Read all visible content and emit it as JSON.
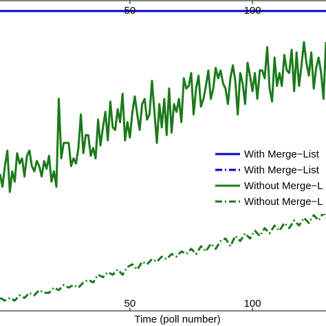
{
  "chart_data": {
    "type": "line",
    "xlabel": "Time (poll number)",
    "ylabel": "",
    "x_ticks": [
      50,
      100
    ],
    "x_axis_span_px_hint": "",
    "legend": {
      "placement": "right",
      "entries": [
        {
          "label": "With Merge−List",
          "color": "#0000cc",
          "style": "solid"
        },
        {
          "label": "With Merge−List",
          "color": "#0000cc",
          "style": "dashdot"
        },
        {
          "label": "Without Merge−L",
          "color": "#1a7a1a",
          "style": "solid"
        },
        {
          "label": "Without Merge−L",
          "color": "#1a7a1a",
          "style": "dashdot"
        }
      ]
    },
    "grid": false,
    "series": [
      {
        "name": "With Merge−List",
        "color": "#0000cc",
        "style": "solid",
        "x": [
          -3,
          130
        ],
        "y": [
          4,
          4
        ]
      },
      {
        "name": "Without Merge−L",
        "color": "#1a7a1a",
        "style": "solid",
        "x": [
          -3,
          -2,
          -1,
          0,
          1,
          2,
          3,
          4,
          5,
          6,
          7,
          8,
          9,
          10,
          11,
          12,
          13,
          14,
          15,
          16,
          17,
          18,
          19,
          20,
          21,
          22,
          23,
          24,
          25,
          26,
          27,
          28,
          29,
          30,
          31,
          32,
          33,
          34,
          35,
          36,
          37,
          38,
          39,
          40,
          41,
          42,
          43,
          44,
          45,
          46,
          47,
          48,
          49,
          50,
          51,
          52,
          53,
          54,
          55,
          56,
          57,
          58,
          59,
          60,
          61,
          62,
          63,
          64,
          65,
          66,
          67,
          68,
          69,
          70,
          71,
          72,
          73,
          74,
          75,
          76,
          77,
          78,
          79,
          80,
          81,
          82,
          83,
          84,
          85,
          86,
          87,
          88,
          89,
          90,
          91,
          92,
          93,
          94,
          95,
          96,
          97,
          98,
          99,
          100,
          101,
          102,
          103,
          104,
          105,
          106,
          107,
          108,
          109,
          110,
          111,
          112,
          113,
          114,
          115,
          116,
          117,
          118,
          119,
          120,
          121,
          122,
          123,
          124,
          125,
          126,
          127,
          128,
          129,
          130
        ],
        "y": [
          67,
          72,
          64,
          58,
          74,
          66,
          70,
          59,
          63,
          61,
          68,
          60,
          58,
          64,
          66,
          62,
          64,
          68,
          62,
          65,
          60,
          70,
          66,
          72,
          38,
          61,
          55,
          55,
          55,
          64,
          61,
          63,
          57,
          44,
          59,
          52,
          52,
          60,
          57,
          61,
          46,
          56,
          49,
          43,
          54,
          39,
          49,
          50,
          42,
          47,
          36,
          54,
          47,
          53,
          43,
          37,
          44,
          50,
          40,
          38,
          46,
          44,
          31,
          43,
          55,
          40,
          49,
          38,
          52,
          34,
          51,
          40,
          43,
          38,
          47,
          30,
          34,
          33,
          28,
          44,
          34,
          29,
          41,
          38,
          33,
          27,
          38,
          34,
          26,
          30,
          27,
          32,
          34,
          40,
          30,
          25,
          31,
          44,
          28,
          32,
          40,
          24,
          29,
          35,
          28,
          38,
          27,
          27,
          30,
          18,
          34,
          39,
          22,
          33,
          28,
          33,
          21,
          27,
          28,
          19,
          35,
          20,
          33,
          25,
          16,
          24,
          29,
          20,
          34,
          26,
          22,
          28,
          38,
          16
        ]
      },
      {
        "name": "Without Merge−L",
        "color": "#1a7a1a",
        "style": "dashdot",
        "x": [
          -3,
          -1,
          1,
          3,
          5,
          7,
          9,
          11,
          13,
          15,
          17,
          19,
          21,
          23,
          25,
          27,
          29,
          31,
          33,
          35,
          37,
          39,
          41,
          43,
          45,
          47,
          49,
          51,
          53,
          55,
          57,
          59,
          61,
          63,
          65,
          67,
          69,
          71,
          73,
          75,
          77,
          79,
          81,
          83,
          85,
          87,
          89,
          91,
          93,
          95,
          97,
          99,
          101,
          103,
          105,
          107,
          109,
          111,
          113,
          115,
          117,
          119,
          121,
          123,
          125,
          127,
          129,
          130
        ],
        "y": [
          115,
          116,
          115,
          116,
          114,
          115,
          113,
          114,
          112,
          113,
          113,
          111,
          112,
          110,
          111,
          110,
          111,
          109,
          108,
          109,
          106,
          107,
          105,
          106,
          104,
          106,
          103,
          102,
          104,
          101,
          102,
          100,
          101,
          99,
          100,
          98,
          99,
          97,
          98,
          96,
          98,
          95,
          97,
          94,
          96,
          93,
          92,
          95,
          91,
          93,
          90,
          92,
          89,
          91,
          88,
          90,
          87,
          89,
          86,
          88,
          85,
          87,
          84,
          86,
          83,
          85,
          82,
          84
        ]
      }
    ],
    "ylim": [
      0,
      120
    ],
    "xlim": [
      -3,
      130
    ]
  }
}
